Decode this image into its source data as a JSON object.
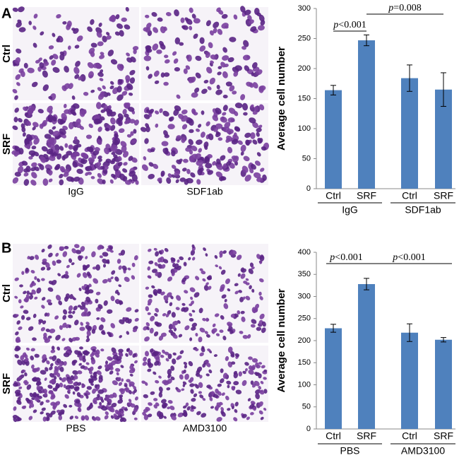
{
  "panels": [
    {
      "label": "A",
      "rows": [
        "Ctrl",
        "SRF"
      ],
      "columns": [
        "IgG",
        "SDF1ab"
      ]
    },
    {
      "label": "B",
      "rows": [
        "Ctrl",
        "SRF"
      ],
      "columns": [
        "PBS",
        "AMD3100"
      ]
    }
  ],
  "chart_data": [
    {
      "type": "bar",
      "ylabel": "Average cell number",
      "categories": [
        "Ctrl",
        "SRF",
        "Ctrl",
        "SRF"
      ],
      "groups": [
        "IgG",
        "SDF1ab"
      ],
      "values": [
        164,
        247,
        184,
        165
      ],
      "errors": [
        8,
        9,
        22,
        28
      ],
      "color": "#4f81bd",
      "ylim": [
        0,
        300
      ],
      "yticks": [
        0,
        50,
        100,
        150,
        200,
        250,
        300
      ],
      "annotations": [
        "p<0.001",
        "p=0.008"
      ]
    },
    {
      "type": "bar",
      "ylabel": "Average cell number",
      "categories": [
        "Ctrl",
        "SRF",
        "Ctrl",
        "SRF"
      ],
      "groups": [
        "PBS",
        "AMD3100"
      ],
      "values": [
        228,
        328,
        218,
        202
      ],
      "errors": [
        9,
        13,
        20,
        5
      ],
      "color": "#4f81bd",
      "ylim": [
        0,
        400
      ],
      "yticks": [
        0,
        50,
        100,
        150,
        200,
        250,
        300,
        350,
        400
      ],
      "annotations": [
        "p<0.001",
        "p<0.001"
      ]
    }
  ]
}
